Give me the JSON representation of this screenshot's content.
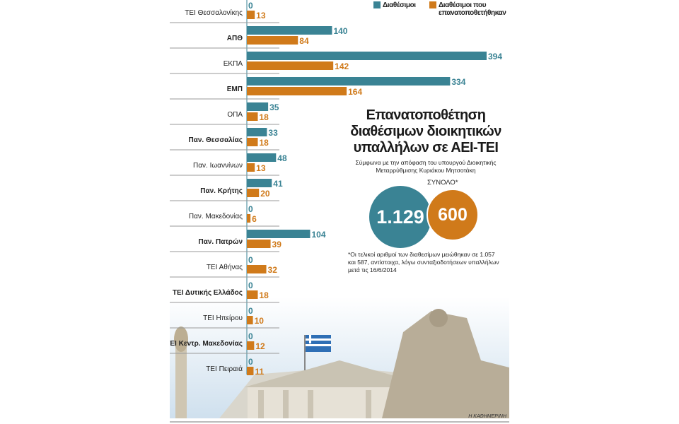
{
  "chart_data": {
    "type": "bar",
    "orientation": "horizontal",
    "categories": [
      "ΤΕΙ Θεσσαλονίκης",
      "ΑΠΘ",
      "ΕΚΠΑ",
      "ΕΜΠ",
      "ΟΠΑ",
      "Παν. Θεσσαλίας",
      "Παν. Ιωαννίνων",
      "Παν. Κρήτης",
      "Παν. Μακεδονίας",
      "Παν. Πατρών",
      "ΤΕΙ Αθήνας",
      "ΤΕΙ Δυτικής Ελλάδος",
      "ΤΕΙ Ηπείρου",
      "ΤΕΙ Κεντρ. Μακεδονίας",
      "ΤΕΙ Πειραιά"
    ],
    "bold_categories": [
      false,
      true,
      false,
      true,
      false,
      true,
      false,
      true,
      false,
      true,
      false,
      true,
      false,
      true,
      false
    ],
    "series": [
      {
        "name": "Διαθέσιμοι",
        "color": "#3a8394",
        "values": [
          0,
          140,
          394,
          334,
          35,
          33,
          48,
          41,
          0,
          104,
          0,
          0,
          0,
          0,
          0
        ]
      },
      {
        "name": "Διαθέσιμοι που επανατοποθετήθηκαν",
        "color": "#d07a1a",
        "values": [
          13,
          84,
          142,
          164,
          18,
          18,
          13,
          20,
          6,
          39,
          32,
          18,
          10,
          12,
          11
        ]
      }
    ],
    "xlim": [
      0,
      394
    ],
    "legend": "top-right",
    "grid": false
  },
  "title": "Επανατοποθέτηση διαθέσιμων διοικητικών υπαλλήλων σε ΑΕΙ-ΤΕΙ",
  "subtitle": "Σύμφωνα με την απόφαση του υπουργού Διοικητικής Μεταρρύθμισης Κυριάκου Μητσοτάκη",
  "total": {
    "label": "ΣΥΝΟΛΟ*",
    "available": "1.129",
    "relocated": "600"
  },
  "note": "*Οι τελικοί αριθμοί των διαθεσίμων μειώθηκαν σε 1.057 και 587, αντίστοιχα, λόγω συνταξιοδοτήσεων υπαλλήλων μετά τις 16/6/2014",
  "credit": "Η ΚΑΘΗΜΕΡΙΝΗ"
}
